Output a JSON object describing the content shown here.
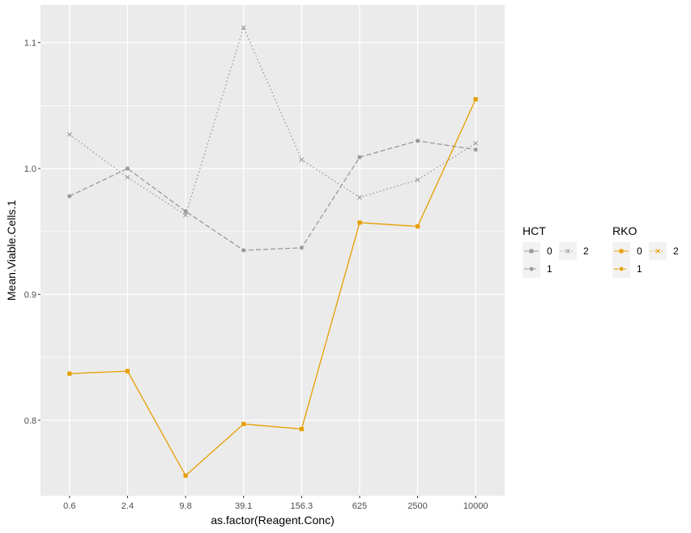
{
  "chart_data": {
    "type": "line",
    "xlabel": "as.factor(Reagent.Conc)",
    "ylabel": "Mean.Viable.Cells.1",
    "categories": [
      "0.6",
      "2.4",
      "9.8",
      "39.1",
      "156.3",
      "625",
      "2500",
      "10000"
    ],
    "yticks": [
      "0.8",
      "0.9",
      "1.0",
      "1.1"
    ],
    "ytick_values": [
      0.8,
      0.9,
      1.0,
      1.1
    ],
    "ylim": [
      0.74,
      1.13
    ],
    "grid": true,
    "legend_position": "right",
    "colors": {
      "HCT": "#999999",
      "RKO": "#E69F00",
      "panel": "#EBEBEB",
      "grid": "#FFFFFF",
      "key_bg": "#F2F2F2"
    },
    "legends": [
      {
        "title": "HCT",
        "color": "#999999",
        "entries": [
          {
            "label": "0",
            "level": 0
          },
          {
            "label": "1",
            "level": 1
          },
          {
            "label": "2",
            "level": 2
          }
        ]
      },
      {
        "title": "RKO",
        "color": "#E69F00",
        "entries": [
          {
            "label": "0",
            "level": 0
          },
          {
            "label": "1",
            "level": 1
          },
          {
            "label": "2",
            "level": 2
          }
        ]
      }
    ],
    "series": [
      {
        "group": "HCT",
        "level": 1,
        "linetype": "dashed",
        "marker": "circle",
        "values": [
          0.978,
          1.0,
          0.966,
          0.935,
          0.937,
          1.009,
          1.022,
          1.015
        ]
      },
      {
        "group": "HCT",
        "level": 2,
        "linetype": "dotted",
        "marker": "cross",
        "values": [
          1.027,
          0.993,
          0.963,
          1.112,
          1.007,
          0.977,
          0.991,
          1.02
        ]
      },
      {
        "group": "RKO",
        "level": 0,
        "linetype": "solid",
        "marker": "square",
        "values": [
          0.837,
          0.839,
          0.756,
          0.797,
          0.793,
          0.957,
          0.954,
          1.055
        ]
      }
    ]
  }
}
